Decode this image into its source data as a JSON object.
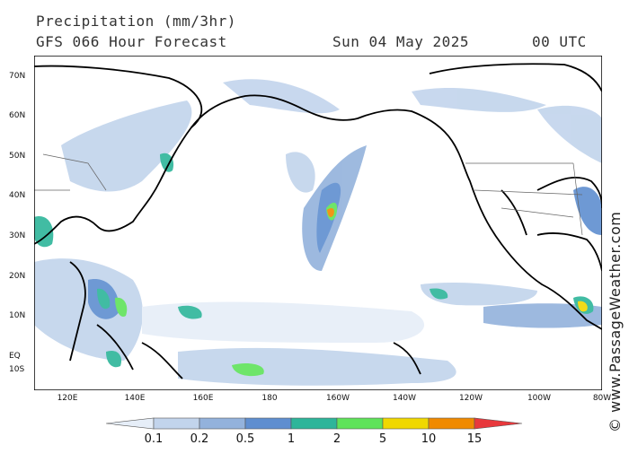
{
  "header": {
    "title": "Precipitation (mm/3hr)",
    "forecast": "GFS 066 Hour Forecast",
    "date": "Sun 04 May 2025",
    "time": "00 UTC"
  },
  "credit": "© www.PassageWeather.com",
  "lat_labels": [
    "70N",
    "60N",
    "50N",
    "40N",
    "30N",
    "20N",
    "10N",
    "EQ",
    "10S"
  ],
  "lon_labels": [
    "120E",
    "140E",
    "160E",
    "180",
    "160W",
    "140W",
    "120W",
    "100W",
    "80W"
  ],
  "colorbar": {
    "labels": [
      "0.1",
      "0.2",
      "0.5",
      "1",
      "2",
      "5",
      "10",
      "15"
    ],
    "colors": [
      "#e6eef8",
      "#c2d4ec",
      "#93b2dc",
      "#5f8ed0",
      "#2db59a",
      "#5fe35a",
      "#f0d800",
      "#f08a00",
      "#e8383c"
    ]
  }
}
